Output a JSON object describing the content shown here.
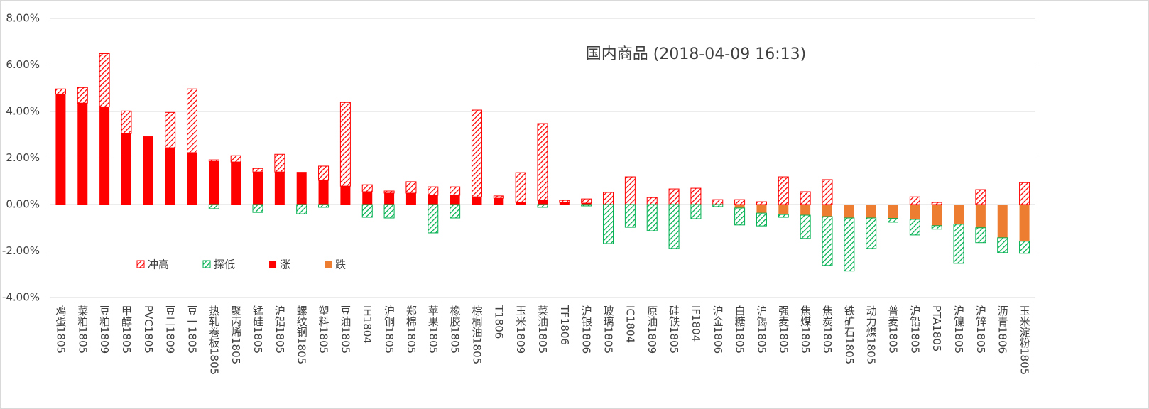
{
  "chart_data": {
    "type": "bar",
    "stacked": true,
    "title": "国内商品 (2018-04-09 16:13)",
    "categories": [
      "鸡蛋1805",
      "菜粕1805",
      "豆粕1809",
      "甲醇1805",
      "PVC1805",
      "豆二1809",
      "豆一1805",
      "热轧卷板1805",
      "聚丙烯1805",
      "锰硅1805",
      "沪铝1805",
      "螺纹钢1805",
      "塑料1805",
      "豆油1805",
      "IH1804",
      "沪铜1805",
      "郑棉1805",
      "苹果1805",
      "橡胶1805",
      "棕榈油1805",
      "T1806",
      "玉米1809",
      "菜油1805",
      "TF1806",
      "沪银1806",
      "玻璃1805",
      "IC1804",
      "原油1809",
      "硅铁1805",
      "IF1804",
      "沪金1806",
      "白糖1805",
      "沪锡1805",
      "强麦1805",
      "焦煤1805",
      "焦炭1805",
      "铁矿石1805",
      "动力煤1805",
      "普麦1805",
      "沪铅1805",
      "PTA1805",
      "沪镍1805",
      "沪锌1805",
      "沥青1806",
      "玉米淀粉1805"
    ],
    "series": [
      {
        "name": "冲高",
        "color": "#ff0000",
        "fill": "hatched",
        "values": [
          0.22,
          0.67,
          2.29,
          0.97,
          0,
          1.52,
          2.74,
          0.06,
          0.27,
          0.15,
          0.76,
          0,
          0.61,
          3.6,
          0.3,
          0.09,
          0.49,
          0.36,
          0.36,
          3.73,
          0.1,
          1.28,
          3.3,
          0.09,
          0.18,
          0.52,
          1.19,
          0.3,
          0.67,
          0.7,
          0.21,
          0.21,
          0.12,
          1.19,
          0.55,
          1.07,
          0,
          0,
          0,
          0.33,
          0.09,
          0,
          0.64,
          0,
          0.94
        ]
      },
      {
        "name": "探低",
        "color": "#00b050",
        "fill": "hatched",
        "values": [
          0,
          0,
          0,
          0,
          0,
          0,
          0,
          -0.18,
          0,
          -0.34,
          0,
          -0.4,
          -0.12,
          0,
          -0.55,
          -0.58,
          0,
          -1.22,
          -0.58,
          0,
          0,
          0,
          -0.12,
          0,
          -0.06,
          -1.68,
          -0.98,
          -1.13,
          -1.89,
          -0.61,
          -0.09,
          -0.73,
          -0.55,
          -0.12,
          -1.0,
          -2.1,
          -2.28,
          -1.31,
          -0.16,
          -0.67,
          -0.15,
          -1.68,
          -0.64,
          -0.64,
          -0.52
        ]
      },
      {
        "name": "涨",
        "color": "#ff0000",
        "fill": "solid",
        "values": [
          4.75,
          4.36,
          4.2,
          3.05,
          2.93,
          2.44,
          2.23,
          1.86,
          1.83,
          1.4,
          1.4,
          1.4,
          1.04,
          0.79,
          0.55,
          0.49,
          0.49,
          0.4,
          0.4,
          0.33,
          0.27,
          0.09,
          0.18,
          0.09,
          0.06,
          0,
          0,
          0,
          0,
          0,
          0,
          0,
          0,
          0,
          0,
          0,
          0,
          0,
          0,
          0,
          0,
          0,
          0,
          0,
          0
        ]
      },
      {
        "name": "跌",
        "color": "#ed7d31",
        "fill": "solid",
        "values": [
          0,
          0,
          0,
          0,
          0,
          0,
          0,
          0,
          0,
          0,
          0,
          0,
          0,
          0,
          0,
          0,
          0,
          0,
          0,
          0,
          0,
          0,
          0,
          0,
          0,
          0,
          0,
          0,
          0,
          0,
          0,
          -0.15,
          -0.37,
          -0.43,
          -0.46,
          -0.52,
          -0.58,
          -0.58,
          -0.6,
          -0.64,
          -0.91,
          -0.85,
          -1.0,
          -1.43,
          -1.58
        ]
      }
    ],
    "ylim": [
      -4,
      8
    ],
    "yticks": [
      {
        "value": -4,
        "label": "-4.00%"
      },
      {
        "value": -2,
        "label": "-2.00%"
      },
      {
        "value": 0,
        "label": "0.00%"
      },
      {
        "value": 2,
        "label": "2.00%"
      },
      {
        "value": 4,
        "label": "4.00%"
      },
      {
        "value": 6,
        "label": "6.00%"
      },
      {
        "value": 8,
        "label": "8.00%"
      }
    ],
    "grid": true
  }
}
